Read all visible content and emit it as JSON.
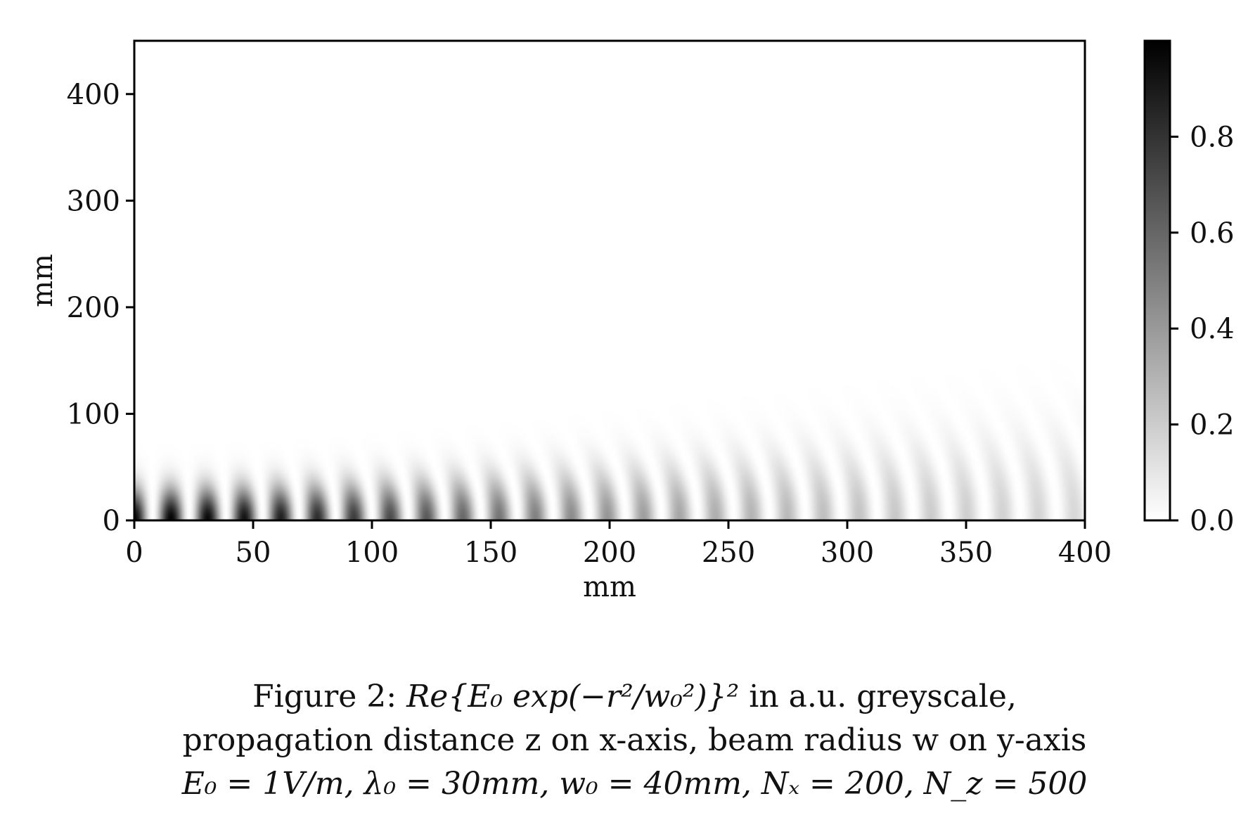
{
  "chart_data": {
    "type": "heatmap",
    "colormap": "greys",
    "xlabel": "mm",
    "ylabel": "mm",
    "xlim": [
      0,
      400
    ],
    "ylim": [
      0,
      450
    ],
    "xticks": [
      0,
      50,
      100,
      150,
      200,
      250,
      300,
      350,
      400
    ],
    "yticks": [
      0,
      100,
      200,
      300,
      400
    ],
    "colorbar": {
      "range": [
        0.0,
        1.0
      ],
      "ticks": [
        "0.0",
        "0.2",
        "0.4",
        "0.6",
        "0.8"
      ]
    },
    "field": {
      "description_values": {
        "E0": 1,
        "wavelength_mm": 30,
        "w0_mm": 40,
        "Nx": 200,
        "Nz": 500
      }
    }
  },
  "caption": {
    "line1_prefix": "Figure 2: ",
    "line1_formula": "Re{E₀ exp(−r²/w₀²)}²",
    "line1_suffix": " in a.u. greyscale,",
    "line2": "propagation distance z on x-axis, beam radius w on y-axis",
    "line3": "E₀ = 1V/m, λ₀ = 30mm, w₀ = 40mm, Nₓ = 200, N_z = 500"
  }
}
